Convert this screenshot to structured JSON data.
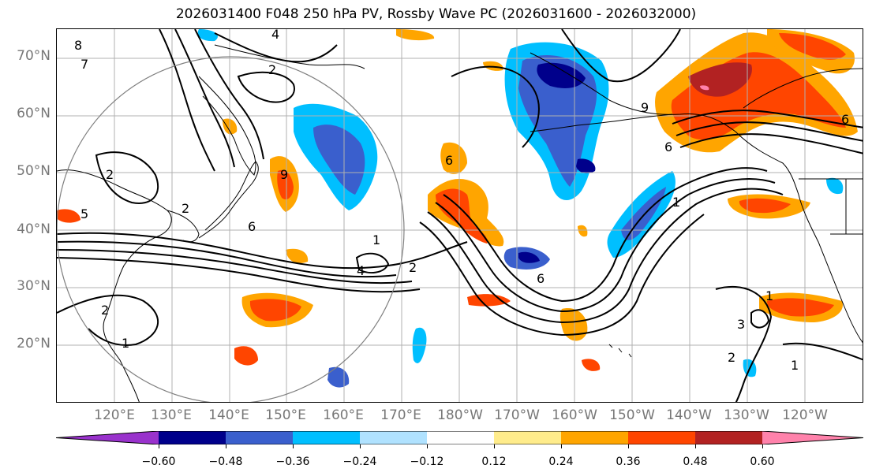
{
  "title": "2026031400 F048 250 hPa PV, Rossby Wave PC (2026031600 - 2026032000)",
  "lat_labels": [
    "70°N",
    "60°N",
    "50°N",
    "40°N",
    "30°N",
    "20°N"
  ],
  "lon_labels": [
    "120°E",
    "130°E",
    "140°E",
    "150°E",
    "160°E",
    "170°E",
    "180°W",
    "170°W",
    "160°W",
    "150°W",
    "140°W",
    "130°W",
    "120°W"
  ],
  "contour_labels": [
    "8",
    "7",
    "4",
    "2",
    "2",
    "2",
    "6",
    "1",
    "2",
    "4",
    "5",
    "6",
    "6",
    "6",
    "1",
    "2",
    "3",
    "1",
    "1",
    "2",
    "9",
    "9",
    "6",
    "1"
  ],
  "colorbar": {
    "ticks": [
      "−0.60",
      "−0.48",
      "−0.36",
      "−0.24",
      "−0.12",
      "0.12",
      "0.24",
      "0.36",
      "0.48",
      "0.60"
    ],
    "colors": [
      "#9932cc",
      "#00008b",
      "#3a5fcd",
      "#00bfff",
      "#b0e2ff",
      "#ffffff",
      "#ffec8b",
      "#ffa500",
      "#ff4500",
      "#b22222",
      "#ff82ab"
    ]
  },
  "fill_colors": {
    "neg_light": "#b0e2ff",
    "neg_mid": "#00bfff",
    "neg_strong": "#3a5fcd",
    "neg_max": "#00008b",
    "pos_light": "#ffec8b",
    "pos_mid": "#ffa500",
    "pos_strong": "#ff4500",
    "pos_max": "#b22222",
    "pos_ext": "#ff82ab"
  }
}
